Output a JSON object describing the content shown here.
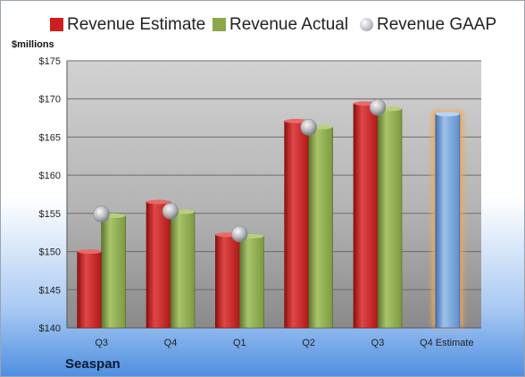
{
  "company": "Seaspan",
  "colors": {
    "estimate": "#cc1f1f",
    "actual": "#8aa84a",
    "gaap": "#b9bcc2",
    "future_estimate": "#6f9fd8",
    "future_glow": "#f2a75a"
  },
  "chart_data": {
    "type": "bar",
    "y_unit_label": "$millions",
    "ylim": [
      140,
      175
    ],
    "y_ticks": [
      "$140",
      "$145",
      "$150",
      "$155",
      "$160",
      "$165",
      "$170",
      "$175"
    ],
    "y_tick_values": [
      140,
      145,
      150,
      155,
      160,
      165,
      170,
      175
    ],
    "categories": [
      "Q3",
      "Q4",
      "Q1",
      "Q2",
      "Q3",
      "Q4 Estimate"
    ],
    "grid": true,
    "legend_position": "top",
    "series": [
      {
        "name": "Revenue Estimate",
        "values": [
          150.0,
          156.5,
          152.2,
          167.1,
          169.4,
          168.0
        ]
      },
      {
        "name": "Revenue Actual",
        "values": [
          154.7,
          155.2,
          152.0,
          166.3,
          168.7,
          null
        ]
      },
      {
        "name": "Revenue GAAP",
        "values": [
          154.9,
          155.3,
          152.3,
          166.3,
          168.9,
          null
        ]
      }
    ]
  }
}
